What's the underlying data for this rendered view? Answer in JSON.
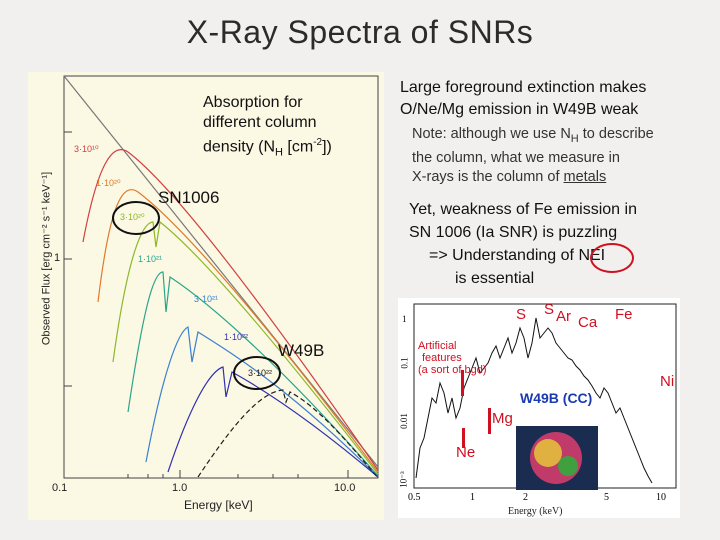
{
  "title": "X-Ray Spectra of SNRs",
  "left_chart": {
    "absorption_note": [
      "Absorption for",
      "different column",
      "density (N",
      "H",
      " [cm",
      "-2",
      "])"
    ],
    "sn1006": "SN1006",
    "w49b": "W49B",
    "ylabel": "Observed Flux [erg cm⁻² s⁻¹ keV⁻¹]",
    "xlabel": "Energy [keV]",
    "xticks": [
      "0.1",
      "1.0",
      "10.0"
    ],
    "yticks": [
      "1"
    ],
    "curve_labels": [
      "3·10¹⁰",
      "1·10²⁰",
      "3·10²⁰",
      "1·10²¹",
      "3·10²¹",
      "1·10²²",
      "3·10²²"
    ],
    "colors": [
      "#d04040",
      "#e07a2a",
      "#8db82a",
      "#2aa58a",
      "#3a80d0",
      "#3030b0",
      "#202020"
    ]
  },
  "right_text": {
    "heading": [
      "Large foreground extinction makes",
      "O/Ne/Mg emission in W49B weak"
    ],
    "note": [
      "Note: although we use N",
      "H",
      " to describe",
      "the column, what we measure in",
      "X-rays is the column of ",
      "metals"
    ],
    "fe_note": [
      "Yet, weakness of Fe emission in",
      "SN 1006 (Ia SNR) is puzzling",
      "=> Understanding of NEI",
      "is essential"
    ]
  },
  "right_chart": {
    "title": "W49B (CC)",
    "xlabel": "Energy (keV)",
    "xticks": [
      "0.5",
      "1",
      "2",
      "5",
      "10"
    ],
    "yticks": [
      "10⁻³",
      "0.01",
      "0.1",
      "1"
    ],
    "line_labels": [
      "S",
      "S",
      "Ar",
      "Ca",
      "Fe",
      "Ni",
      "Mg",
      "Ne"
    ],
    "artificial": [
      "Artificial",
      "features",
      "(a sort of bgd)"
    ]
  }
}
